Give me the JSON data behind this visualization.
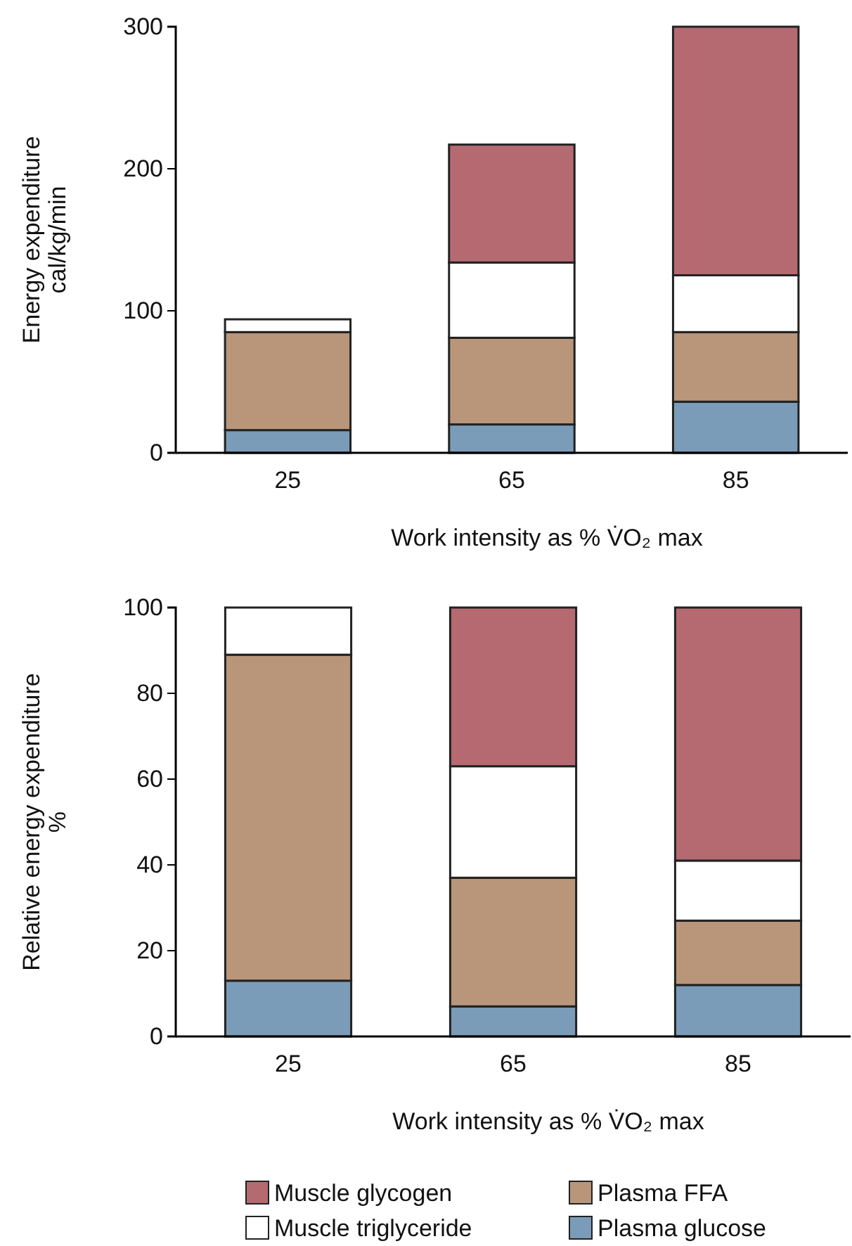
{
  "chart_data": [
    {
      "type": "bar",
      "stacked": true,
      "categories": [
        "25",
        "65",
        "85"
      ],
      "xlabel": "Work intensity as % V̇O₂ max",
      "ylabel": "Energy expenditure\ncal/kg/min",
      "ylim": [
        0,
        300
      ],
      "yticks": [
        0,
        100,
        200,
        300
      ],
      "grid": false,
      "legend": false,
      "series": [
        {
          "color": "#7a9cb8",
          "values": [
            16,
            20,
            36
          ]
        },
        {
          "color": "#b9967a",
          "values": [
            69,
            61,
            49
          ]
        },
        {
          "color": "#ffffff",
          "values": [
            9,
            53,
            40
          ]
        },
        {
          "color": "#b56a72",
          "values": [
            0,
            83,
            175
          ]
        }
      ]
    },
    {
      "type": "bar",
      "stacked": true,
      "categories": [
        "25",
        "65",
        "85"
      ],
      "xlabel": "Work intensity as % V̇O₂ max",
      "ylabel": "Relative energy expenditure\n%",
      "ylim": [
        0,
        100
      ],
      "yticks": [
        0,
        20,
        40,
        60,
        80,
        100
      ],
      "grid": false,
      "legend": "bottom",
      "series": [
        {
          "name": "Plasma glucose",
          "color": "#7a9cb8",
          "values": [
            13,
            7,
            12
          ]
        },
        {
          "name": "Plasma FFA",
          "color": "#b9967a",
          "values": [
            76,
            30,
            15
          ]
        },
        {
          "name": "Muscle triglyceride",
          "color": "#ffffff",
          "values": [
            11,
            26,
            14
          ]
        },
        {
          "name": "Muscle glycogen",
          "color": "#b56a72",
          "values": [
            0,
            37,
            59
          ]
        }
      ]
    }
  ]
}
